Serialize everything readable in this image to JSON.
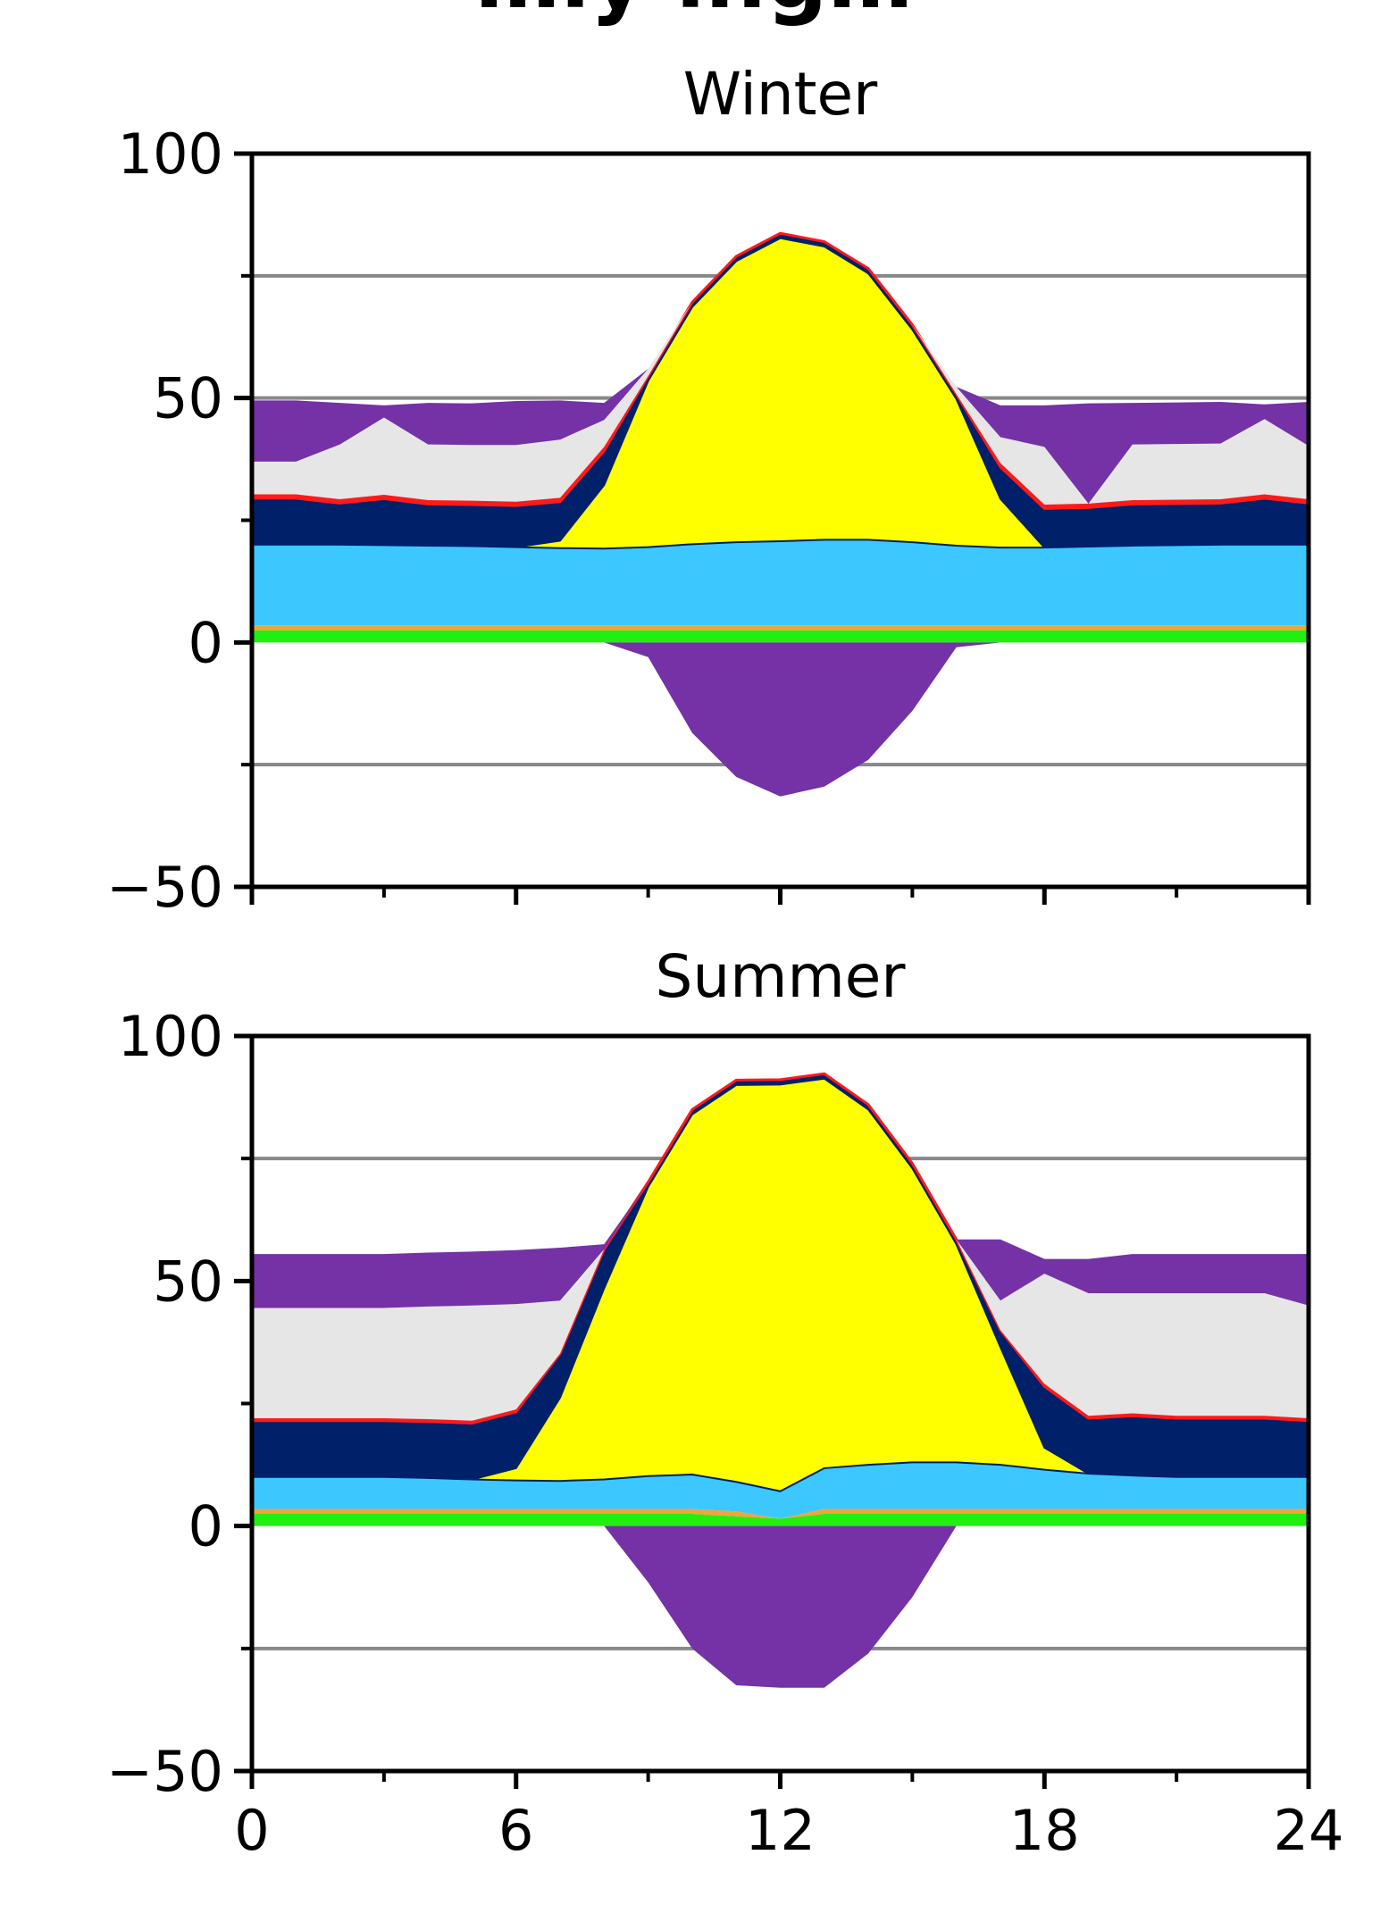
{
  "page_title": "…ly ing…",
  "chart_data": [
    {
      "type": "area",
      "title": "Winter",
      "xlabel": "",
      "ylabel": "",
      "xlim": [
        0,
        24
      ],
      "ylim": [
        -50,
        100
      ],
      "xticks_major": [
        0,
        6,
        12,
        18,
        24
      ],
      "xticks_minor": [
        3,
        9,
        15,
        21
      ],
      "yticks_major": [
        -50,
        0,
        50,
        100
      ],
      "yticks_minor": [
        -25,
        25,
        75
      ],
      "gridlines": [
        -25,
        50,
        75
      ],
      "x": [
        0,
        1,
        2,
        3,
        4,
        5,
        6,
        7,
        8,
        9,
        10,
        11,
        12,
        13,
        14,
        15,
        16,
        17,
        18,
        19,
        20,
        21,
        22,
        23,
        24
      ],
      "positive_series": [
        {
          "color": "#22ee11",
          "values": [
            2.5,
            2.5,
            2.5,
            2.5,
            2.5,
            2.5,
            2.5,
            2.5,
            2.5,
            2.5,
            2.5,
            2.5,
            2.5,
            2.5,
            2.5,
            2.5,
            2.5,
            2.5,
            2.5,
            2.5,
            2.5,
            2.5,
            2.5,
            2.5,
            2.5
          ]
        },
        {
          "color": "#f2a33a",
          "values": [
            1,
            1,
            1,
            1,
            1,
            1,
            1,
            1,
            1,
            1,
            1,
            1,
            1,
            1,
            1,
            1,
            1,
            1,
            1,
            1,
            1,
            1,
            1,
            1,
            1
          ]
        },
        {
          "color": "#3cc8ff",
          "values": [
            16.5,
            16.5,
            16.5,
            16.4,
            16.3,
            16.2,
            16.0,
            15.8,
            15.7,
            16.0,
            16.6,
            17.0,
            17.2,
            17.5,
            17.5,
            17.0,
            16.3,
            15.9,
            15.9,
            16.1,
            16.3,
            16.4,
            16.5,
            16.5,
            16.5
          ]
        },
        {
          "color": "#ffff00",
          "values": [
            0,
            0,
            0,
            0,
            0,
            0,
            0,
            1.5,
            13.0,
            34.0,
            48.5,
            57.5,
            62.0,
            60.0,
            54.5,
            43.5,
            30.0,
            10.0,
            0,
            0,
            0,
            0,
            0,
            0,
            0
          ]
        },
        {
          "color": "#00206a",
          "values": [
            9.5,
            9.5,
            8.5,
            9.5,
            8.5,
            8.5,
            8.5,
            8.0,
            7.0,
            1.0,
            1.0,
            1.0,
            1.0,
            1.0,
            1.0,
            1.0,
            1.0,
            6.5,
            8.0,
            8.0,
            8.5,
            8.5,
            8.5,
            9.5,
            8.5
          ]
        },
        {
          "color": "#ff1a1a",
          "values": [
            0.8,
            0.8,
            0.8,
            0.8,
            0.8,
            0.8,
            0.8,
            0.8,
            0.8,
            0,
            0,
            0,
            0,
            0,
            0,
            0,
            0,
            0.8,
            0.8,
            0.8,
            0.8,
            0.8,
            0.8,
            0.8,
            0.8
          ]
        },
        {
          "color": "#e6e6e6",
          "values": [
            6.7,
            6.7,
            11.2,
            15.8,
            11.4,
            11.4,
            11.6,
            11.9,
            5.5,
            1.5,
            0,
            0,
            0,
            0,
            0,
            0,
            1.5,
            5.3,
            11.8,
            0,
            11.4,
            11.4,
            11.4,
            15.4,
            10.9
          ]
        },
        {
          "color": "#7432a6",
          "values": [
            12.5,
            12.5,
            8.5,
            2.5,
            8.5,
            8.5,
            9.0,
            8.0,
            3.5,
            0,
            0,
            0,
            0,
            0,
            0,
            0,
            0,
            6.5,
            8.5,
            20.5,
            8.5,
            8.5,
            8.5,
            3.0,
            9.0
          ]
        }
      ],
      "negative_series": [
        {
          "color": "#7432a6",
          "values": [
            0,
            0,
            0,
            0,
            0,
            0,
            0,
            0,
            0,
            -3.0,
            -18.5,
            -27.5,
            -31.5,
            -29.5,
            -24.0,
            -14.0,
            -1.0,
            0,
            0,
            0,
            0,
            0,
            0,
            0,
            0
          ]
        }
      ]
    },
    {
      "type": "area",
      "title": "Summer",
      "xlabel": "",
      "ylabel": "",
      "xlim": [
        0,
        24
      ],
      "ylim": [
        -50,
        100
      ],
      "xticks_major": [
        0,
        6,
        12,
        18,
        24
      ],
      "xticks_minor": [
        3,
        9,
        15,
        21
      ],
      "xtick_labels": [
        "0",
        "6",
        "12",
        "18",
        "24"
      ],
      "yticks_major": [
        -50,
        0,
        50,
        100
      ],
      "yticks_minor": [
        -25,
        25,
        75
      ],
      "gridlines": [
        -25,
        50,
        75
      ],
      "x": [
        0,
        1,
        2,
        3,
        4,
        5,
        6,
        7,
        8,
        9,
        10,
        11,
        12,
        13,
        14,
        15,
        16,
        17,
        18,
        19,
        20,
        21,
        22,
        23,
        24
      ],
      "positive_series": [
        {
          "color": "#22ee11",
          "values": [
            2.5,
            2.5,
            2.5,
            2.5,
            2.5,
            2.5,
            2.5,
            2.5,
            2.5,
            2.5,
            2.5,
            2.0,
            1.5,
            2.5,
            2.5,
            2.5,
            2.5,
            2.5,
            2.5,
            2.5,
            2.5,
            2.5,
            2.5,
            2.5,
            2.5
          ]
        },
        {
          "color": "#f2a33a",
          "values": [
            1,
            1,
            1,
            1,
            1,
            1,
            1,
            1,
            1,
            1,
            1,
            1,
            0,
            1,
            1,
            1,
            1,
            1,
            1,
            1,
            1,
            1,
            1,
            1,
            1
          ]
        },
        {
          "color": "#3cc8ff",
          "values": [
            6.5,
            6.5,
            6.5,
            6.5,
            6.3,
            6.0,
            5.8,
            5.7,
            6.0,
            6.7,
            7.0,
            6.0,
            5.6,
            8.3,
            9.0,
            9.5,
            9.5,
            9.0,
            8.0,
            7.2,
            6.8,
            6.5,
            6.5,
            6.5,
            6.5
          ]
        },
        {
          "color": "#ffff00",
          "values": [
            0,
            0,
            0,
            0,
            0,
            0,
            2.5,
            17.0,
            39.0,
            59.0,
            73.5,
            81.0,
            83.0,
            79.5,
            72.5,
            60.0,
            44.5,
            24.0,
            4.5,
            0,
            0,
            0,
            0,
            0,
            0
          ]
        },
        {
          "color": "#00206a",
          "values": [
            11.5,
            11.5,
            11.5,
            11.5,
            11.5,
            11.5,
            11.5,
            9.0,
            8.0,
            1.0,
            1.0,
            1.0,
            1.0,
            1.0,
            1.0,
            1.0,
            1.0,
            3.5,
            12.5,
            11.3,
            12.2,
            12.0,
            12.0,
            12.0,
            11.5
          ]
        },
        {
          "color": "#ff1a1a",
          "values": [
            0.5,
            0.5,
            0.5,
            0.5,
            0.5,
            0.5,
            0.5,
            0,
            0,
            0,
            0,
            0,
            0,
            0,
            0,
            0,
            0,
            0,
            0.5,
            0.5,
            0.5,
            0.5,
            0.5,
            0.5,
            0.5
          ]
        },
        {
          "color": "#e6e6e6",
          "values": [
            22.5,
            22.5,
            22.5,
            22.5,
            23.0,
            23.5,
            21.5,
            10.8,
            0,
            0,
            0,
            0,
            0,
            0,
            0,
            0,
            0,
            6.0,
            22.5,
            25.0,
            24.5,
            25.0,
            25.0,
            25.0,
            23.0
          ]
        },
        {
          "color": "#7432a6",
          "values": [
            11.0,
            11.0,
            11.0,
            11.0,
            11.0,
            11.0,
            11.0,
            10.8,
            1.0,
            0,
            0,
            0,
            0,
            0,
            0,
            0,
            0,
            12.5,
            3.0,
            7.0,
            8.0,
            8.0,
            8.0,
            8.0,
            10.5
          ]
        }
      ],
      "negative_series": [
        {
          "color": "#7432a6",
          "values": [
            0,
            0,
            0,
            0,
            0,
            0,
            0,
            0,
            0,
            -11.5,
            -25.0,
            -32.5,
            -33.0,
            -33.0,
            -26.0,
            -14.5,
            0,
            0,
            0,
            0,
            0,
            0,
            0,
            0,
            0
          ]
        }
      ]
    }
  ]
}
